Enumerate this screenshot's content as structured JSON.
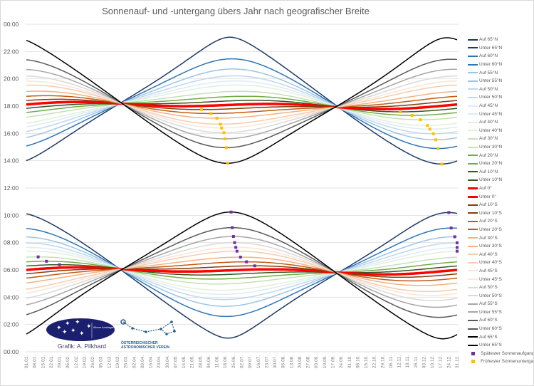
{
  "chart_data": {
    "type": "line",
    "title": "Sonnenauf- und -untergang übers Jahr nach geografischer Breite",
    "y_ticks": [
      "00:00",
      "22:00",
      "20:00",
      "18:00",
      "16:00",
      "14:00",
      "12:00",
      "10:00",
      "08:00",
      "06:00",
      "04:00",
      "02:00",
      "00:00"
    ],
    "ylim": [
      "00:00",
      "24:00"
    ],
    "x_ticks": [
      "01.01.",
      "08.01.",
      "15.01.",
      "22.01.",
      "29.01.",
      "05.02.",
      "12.02.",
      "19.02.",
      "26.02.",
      "05.03.",
      "12.03.",
      "19.03.",
      "26.03.",
      "02.04.",
      "09.04.",
      "16.04.",
      "23.04.",
      "30.04.",
      "07.05.",
      "14.05.",
      "21.05.",
      "28.05.",
      "04.06.",
      "11.06.",
      "18.06.",
      "25.06.",
      "02.07.",
      "09.07.",
      "16.07.",
      "23.07.",
      "30.07.",
      "06.08.",
      "13.08.",
      "20.08.",
      "27.08.",
      "03.09.",
      "10.09.",
      "17.09.",
      "24.09.",
      "01.10.",
      "08.10.",
      "15.10.",
      "22.10.",
      "29.10.",
      "05.11.",
      "12.11.",
      "19.11.",
      "26.11.",
      "03.12.",
      "10.12.",
      "17.12.",
      "24.12.",
      "31.12."
    ],
    "grid": true,
    "legend_position": "right",
    "latitudes": [
      {
        "lat": 65,
        "auf": "Auf 65°N",
        "unter": "Unter 65°N",
        "color": "#1f3864"
      },
      {
        "lat": 60,
        "auf": "Auf 60°N",
        "unter": "Unter 60°N",
        "color": "#2e75b6"
      },
      {
        "lat": 55,
        "auf": "Auf 55°N",
        "unter": "Unter 55°N",
        "color": "#9dc3e6"
      },
      {
        "lat": 50,
        "auf": "Auf 50°N",
        "unter": "Unter 50°N",
        "color": "#bdd7ee"
      },
      {
        "lat": 45,
        "auf": "Auf 45°N",
        "unter": "Unter 45°N",
        "color": "#deebf7"
      },
      {
        "lat": 40,
        "auf": "Auf 40°N",
        "unter": "Unter 40°N",
        "color": "#e2f0d9"
      },
      {
        "lat": 30,
        "auf": "Auf 30°N",
        "unter": "Unter 30°N",
        "color": "#c5e0b4"
      },
      {
        "lat": 20,
        "auf": "Auf 20°N",
        "unter": "Unter 20°N",
        "color": "#70ad47"
      },
      {
        "lat": 10,
        "auf": "Auf 10°N",
        "unter": "Unter 10°N",
        "color": "#375623"
      },
      {
        "lat": 0,
        "auf": "Auf 0°",
        "unter": "Unter 0°",
        "color": "#ff0000"
      },
      {
        "lat": -10,
        "auf": "Auf 10°S",
        "unter": "Unter 10°S",
        "color": "#843c0c"
      },
      {
        "lat": -20,
        "auf": "Auf 20°S",
        "unter": "Unter 20°S",
        "color": "#c55a11"
      },
      {
        "lat": -30,
        "auf": "Auf 30°S",
        "unter": "Unter 30°S",
        "color": "#f4b183"
      },
      {
        "lat": -40,
        "auf": "Auf 40°S",
        "unter": "Unter 40°S",
        "color": "#f8cbad"
      },
      {
        "lat": -45,
        "auf": "Auf 45°S",
        "unter": "Unter 45°S",
        "color": "#fbe5d6"
      },
      {
        "lat": -50,
        "auf": "Auf 50°S",
        "unter": "Unter 50°S",
        "color": "#d9d9d9"
      },
      {
        "lat": -55,
        "auf": "Auf 55°S",
        "unter": "Unter 55°S",
        "color": "#a6a6a6"
      },
      {
        "lat": -60,
        "auf": "Auf 60°S",
        "unter": "Unter 60°S",
        "color": "#595959"
      },
      {
        "lat": -65,
        "auf": "Auf 65°S",
        "unter": "Unter 65°S",
        "color": "#000000"
      }
    ],
    "markers": [
      {
        "name": "Spätester Sonnenaufgang",
        "color": "#7030a0"
      },
      {
        "name": "Frühester Sonnenuntergang",
        "color": "#ffc000"
      }
    ]
  },
  "credit": "Grafik: A. Pilkhard",
  "logos": {
    "waa": "Wiener Arbeitsgemeinschaft für Astronomie",
    "oeav_line1": "ÖSTERREICHISCHER",
    "oeav_line2": "ASTRONOMISCHER VEREIN"
  }
}
